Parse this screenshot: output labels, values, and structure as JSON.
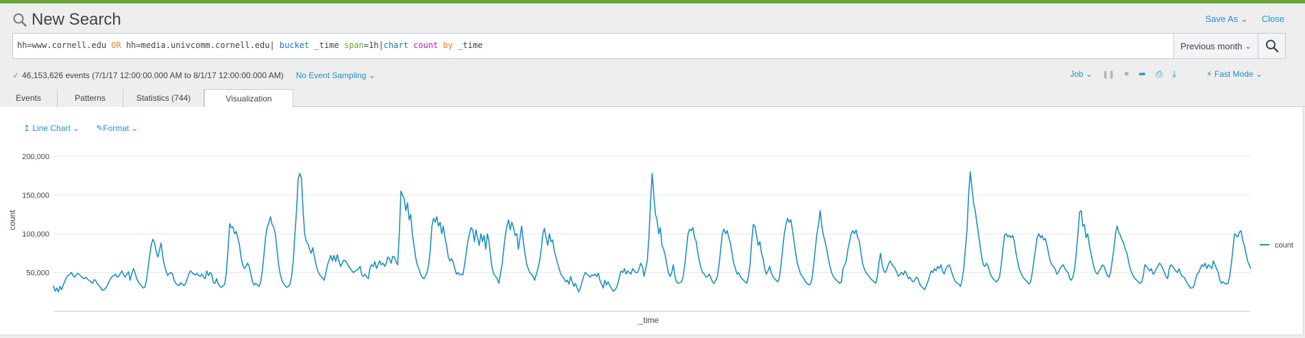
{
  "app": {
    "title": "New Search",
    "save_as": "Save As",
    "close": "Close"
  },
  "search": {
    "query_parts": [
      {
        "text": "hh=www.cornell.edu ",
        "kind": "plain"
      },
      {
        "text": "OR",
        "kind": "op"
      },
      {
        "text": " hh=media.univcomm.cornell.edu| ",
        "kind": "plain"
      },
      {
        "text": "bucket",
        "kind": "cmd"
      },
      {
        "text": " _time ",
        "kind": "plain"
      },
      {
        "text": "span",
        "kind": "arg"
      },
      {
        "text": "=1h|",
        "kind": "plain"
      },
      {
        "text": "chart",
        "kind": "cmd"
      },
      {
        "text": " ",
        "kind": "plain"
      },
      {
        "text": "count",
        "kind": "fn"
      },
      {
        "text": " ",
        "kind": "plain"
      },
      {
        "text": "by",
        "kind": "op"
      },
      {
        "text": " _time",
        "kind": "plain"
      }
    ],
    "time_range": "Previous month",
    "search_button_icon": "search-icon"
  },
  "status": {
    "events_text": "46,153,626 events (7/1/17 12:00:00.000 AM to 8/1/17 12:00:00.000 AM)",
    "sampling": "No Event Sampling",
    "job": "Job",
    "mode": "Fast Mode"
  },
  "tabs": [
    {
      "label": "Events"
    },
    {
      "label": "Patterns"
    },
    {
      "label": "Statistics (744)"
    },
    {
      "label": "Visualization"
    }
  ],
  "viz": {
    "chart_type": "Line Chart",
    "format": "Format"
  },
  "colors": {
    "accent": "#1e93c6",
    "series": "#1a8fc1",
    "topbar": "#65a637"
  },
  "chart_data": {
    "type": "line",
    "xlabel": "_time",
    "ylabel": "count",
    "ylim": [
      0,
      200000
    ],
    "yticks": [
      "200,000",
      "150,000",
      "100,000",
      "50,000"
    ],
    "legend": "right",
    "series": [
      {
        "name": "count",
        "values": [
          33000,
          26000,
          30000,
          25000,
          32000,
          28000,
          34000,
          39000,
          44000,
          46000,
          48000,
          50000,
          46000,
          44000,
          47000,
          49000,
          47000,
          45000,
          43000,
          42000,
          44000,
          41000,
          40000,
          38000,
          36000,
          41000,
          39000,
          35000,
          33000,
          30000,
          27000,
          28000,
          30000,
          33000,
          38000,
          42000,
          45000,
          46000,
          48000,
          44000,
          45000,
          49000,
          52000,
          47000,
          44000,
          48000,
          51000,
          40000,
          48000,
          55000,
          50000,
          42000,
          38000,
          35000,
          33000,
          30000,
          31000,
          40000,
          55000,
          72000,
          86000,
          93000,
          88000,
          77000,
          70000,
          79000,
          88000,
          70000,
          60000,
          52000,
          46000,
          49000,
          50000,
          48000,
          40000,
          36000,
          34000,
          33000,
          37000,
          35000,
          33000,
          36000,
          42000,
          48000,
          52000,
          50000,
          48000,
          47000,
          49000,
          46000,
          45000,
          48000,
          44000,
          42000,
          52000,
          46000,
          50000,
          48000,
          37000,
          36000,
          42000,
          35000,
          32000,
          31000,
          33000,
          35000,
          50000,
          80000,
          113000,
          108000,
          109000,
          100000,
          103000,
          95000,
          86000,
          70000,
          60000,
          55000,
          58000,
          62000,
          58000,
          48000,
          38000,
          34000,
          36000,
          34000,
          32000,
          38000,
          52000,
          72000,
          95000,
          108000,
          114000,
          122000,
          112000,
          109000,
          100000,
          80000,
          60000,
          48000,
          40000,
          36000,
          33000,
          31000,
          32000,
          35000,
          45000,
          65000,
          100000,
          130000,
          170000,
          178000,
          172000,
          130000,
          100000,
          90000,
          87000,
          80000,
          75000,
          82000,
          70000,
          60000,
          52000,
          48000,
          45000,
          43000,
          40000,
          50000,
          60000,
          66000,
          72000,
          65000,
          72000,
          64000,
          73000,
          65000,
          58000,
          62000,
          66000,
          65000,
          62000,
          58000,
          55000,
          52000,
          50000,
          52000,
          53000,
          55000,
          58000,
          47000,
          45000,
          48000,
          44000,
          42000,
          55000,
          60000,
          58000,
          64000,
          55000,
          60000,
          65000,
          60000,
          62000,
          58000,
          62000,
          70000,
          68000,
          62000,
          71000,
          70000,
          64000,
          60000,
          100000,
          155000,
          150000,
          145000,
          130000,
          140000,
          118000,
          125000,
          100000,
          85000,
          70000,
          60000,
          55000,
          48000,
          44000,
          42000,
          45000,
          50000,
          60000,
          80000,
          110000,
          120000,
          115000,
          122000,
          110000,
          115000,
          100000,
          110000,
          95000,
          85000,
          70000,
          65000,
          68000,
          64000,
          55000,
          48000,
          50000,
          47000,
          48000,
          47000,
          60000,
          75000,
          90000,
          100000,
          108000,
          105000,
          90000,
          105000,
          95000,
          85000,
          100000,
          90000,
          98000,
          80000,
          100000,
          90000,
          70000,
          55000,
          48000,
          45000,
          42000,
          36000,
          48000,
          60000,
          80000,
          98000,
          110000,
          118000,
          105000,
          115000,
          108000,
          98000,
          100000,
          80000,
          95000,
          110000,
          90000,
          75000,
          62000,
          55000,
          50000,
          48000,
          45000,
          40000,
          48000,
          55000,
          65000,
          80000,
          100000,
          107000,
          95000,
          85000,
          100000,
          90000,
          92000,
          78000,
          70000,
          62000,
          55000,
          48000,
          45000,
          42000,
          38000,
          40000,
          35000,
          45000,
          38000,
          32000,
          36000,
          30000,
          25000,
          30000,
          38000,
          45000,
          50000,
          48000,
          46000,
          44000,
          47000,
          46000,
          48000,
          45000,
          49000,
          40000,
          35000,
          30000,
          40000,
          34000,
          38000,
          33000,
          30000,
          26000,
          27000,
          30000,
          36000,
          45000,
          52000,
          50000,
          55000,
          48000,
          52000,
          50000,
          48000,
          55000,
          52000,
          50000,
          50000,
          55000,
          62000,
          58000,
          45000,
          55000,
          65000,
          95000,
          140000,
          178000,
          150000,
          125000,
          118000,
          100000,
          108000,
          85000,
          80000,
          72000,
          60000,
          50000,
          45000,
          50000,
          60000,
          45000,
          38000,
          36000,
          37000,
          38000,
          45000,
          60000,
          80000,
          100000,
          106000,
          104000,
          108000,
          95000,
          90000,
          75000,
          65000,
          55000,
          50000,
          48000,
          44000,
          45000,
          48000,
          43000,
          38000,
          36000,
          40000,
          45000,
          60000,
          80000,
          100000,
          106000,
          100000,
          104000,
          95000,
          88000,
          75000,
          62000,
          55000,
          48000,
          50000,
          45000,
          42000,
          40000,
          38000,
          36000,
          45000,
          60000,
          90000,
          112000,
          110000,
          98000,
          85000,
          90000,
          75000,
          68000,
          55000,
          48000,
          52000,
          58000,
          50000,
          45000,
          42000,
          40000,
          38000,
          43000,
          60000,
          80000,
          100000,
          112000,
          120000,
          115000,
          118000,
          105000,
          90000,
          75000,
          62000,
          55000,
          48000,
          45000,
          42000,
          38000,
          36000,
          34000,
          35000,
          42000,
          60000,
          80000,
          100000,
          112000,
          130000,
          110000,
          98000,
          90000,
          80000,
          68000,
          58000,
          50000,
          45000,
          42000,
          40000,
          38000,
          36000,
          38000,
          55000,
          60000,
          65000,
          80000,
          90000,
          100000,
          104000,
          100000,
          105000,
          95000,
          90000,
          75000,
          62000,
          55000,
          50000,
          48000,
          45000,
          42000,
          40000,
          38000,
          36000,
          44000,
          62000,
          75000,
          60000,
          52000,
          50000,
          55000,
          62000,
          65000,
          60000,
          58000,
          55000,
          50000,
          45000,
          48000,
          50000,
          47000,
          52000,
          48000,
          42000,
          44000,
          40000,
          38000,
          40000,
          44000,
          42000,
          35000,
          32000,
          30000,
          28000,
          33000,
          38000,
          45000,
          52000,
          50000,
          55000,
          52000,
          58000,
          55000,
          60000,
          52000,
          48000,
          55000,
          58000,
          60000,
          55000,
          48000,
          42000,
          38000,
          36000,
          35000,
          32000,
          40000,
          55000,
          80000,
          105000,
          150000,
          180000,
          160000,
          140000,
          130000,
          115000,
          100000,
          85000,
          70000,
          60000,
          58000,
          62000,
          58000,
          50000,
          45000,
          42000,
          40000,
          38000,
          40000,
          45000,
          60000,
          80000,
          98000,
          100000,
          96000,
          98000,
          95000,
          98000,
          90000,
          75000,
          65000,
          55000,
          50000,
          45000,
          42000,
          40000,
          38000,
          35000,
          38000,
          50000,
          65000,
          80000,
          95000,
          100000,
          95000,
          98000,
          92000,
          94000,
          85000,
          75000,
          65000,
          60000,
          58000,
          55000,
          48000,
          50000,
          55000,
          58000,
          60000,
          55000,
          52000,
          50000,
          42000,
          40000,
          45000,
          55000,
          75000,
          100000,
          128000,
          130000,
          110000,
          112000,
          95000,
          100000,
          85000,
          75000,
          65000,
          55000,
          50000,
          48000,
          52000,
          55000,
          60000,
          58000,
          52000,
          46000,
          44000,
          50000,
          65000,
          80000,
          100000,
          110000,
          102000,
          98000,
          92000,
          88000,
          80000,
          75000,
          65000,
          55000,
          50000,
          45000,
          42000,
          40000,
          38000,
          36000,
          38000,
          45000,
          60000,
          58000,
          55000,
          52000,
          55000,
          48000,
          50000,
          55000,
          58000,
          62000,
          60000,
          55000,
          50000,
          45000,
          42000,
          55000,
          60000,
          58000,
          55000,
          52000,
          50000,
          55000,
          48000,
          45000,
          44000,
          40000,
          36000,
          33000,
          30000,
          30000,
          32000,
          40000,
          48000,
          50000,
          55000,
          60000,
          58000,
          62000,
          55000,
          60000,
          58000,
          55000,
          65000,
          60000,
          55000,
          50000,
          40000,
          36000,
          38000,
          36000,
          35000,
          36000,
          45000,
          60000,
          80000,
          100000,
          98000,
          96000,
          102000,
          104000,
          92000,
          85000,
          75000,
          65000,
          60000,
          55000
        ]
      }
    ]
  }
}
